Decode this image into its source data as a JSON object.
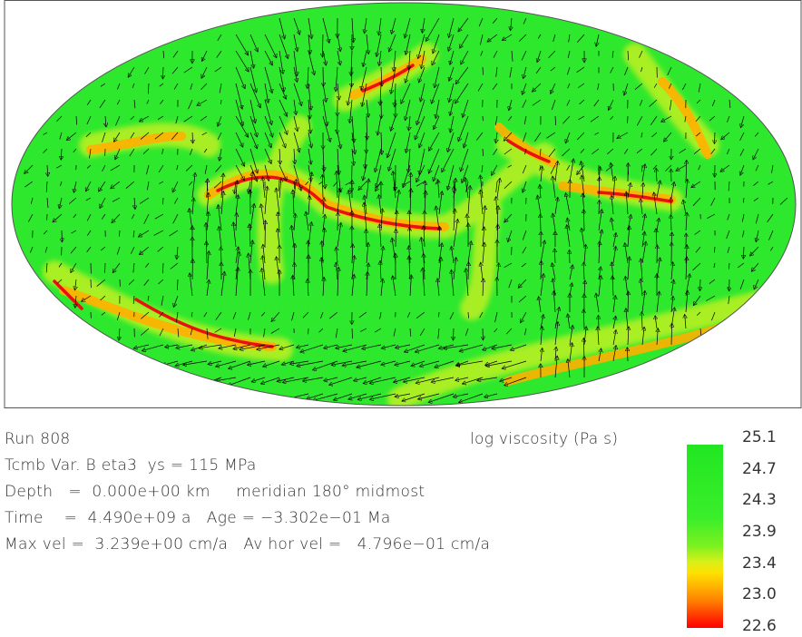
{
  "header": {
    "run": "Run 808",
    "colorbar_title": "log viscosity (Pa s)"
  },
  "info_lines": [
    "Tcmb Var. B eta3  ys = 115 MPa",
    "Depth   =  0.000e+00 km     meridian 180° midmost",
    "Time    =  4.490e+09 a   Age = −3.302e−01 Ma",
    "Max vel =  3.239e+00 cm/a   Av hor vel =   4.796e−01 cm/a"
  ],
  "colorbar": {
    "labels": [
      "25.1",
      "24.7",
      "24.3",
      "23.9",
      "23.4",
      "23.0",
      "22.6"
    ]
  }
}
